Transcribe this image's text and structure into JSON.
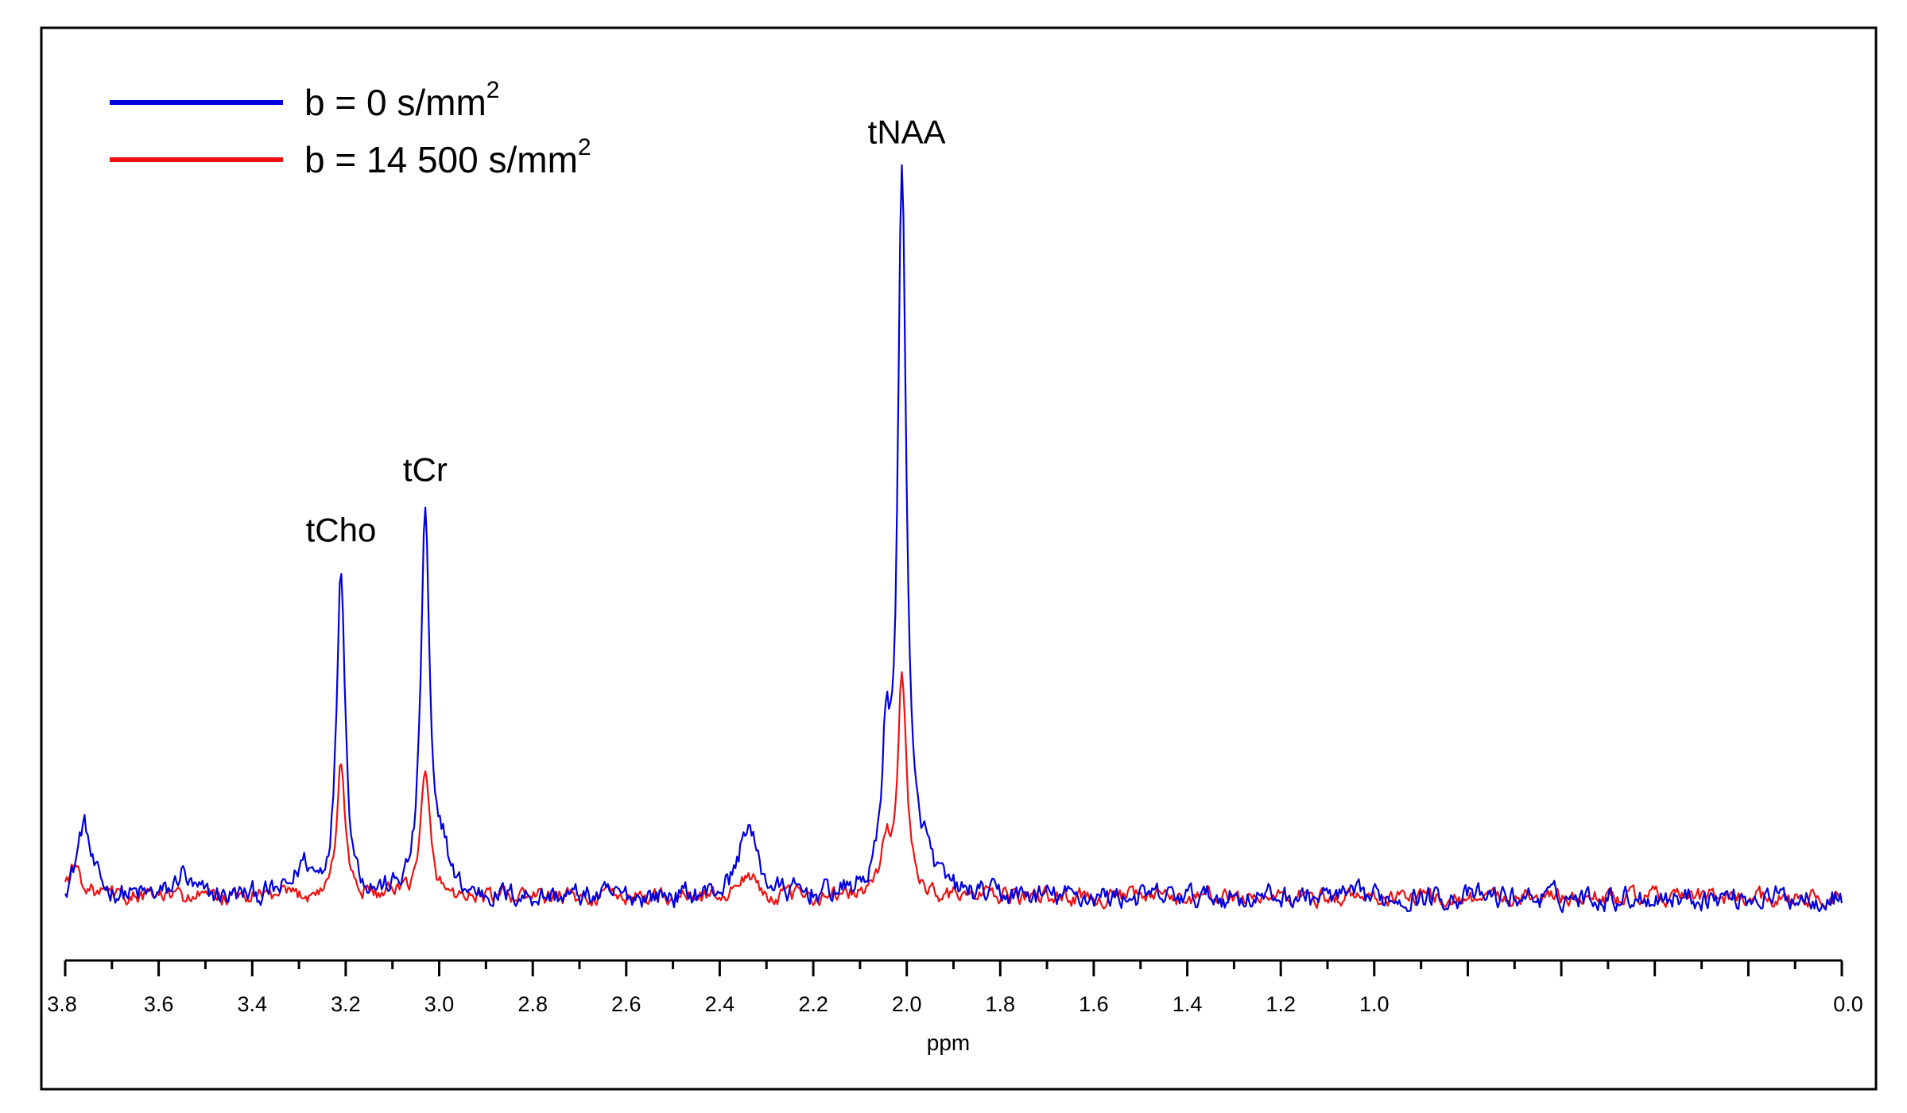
{
  "chart_data": {
    "type": "line",
    "title": "",
    "xlabel": "ppm",
    "ylabel": "",
    "x_reversed": true,
    "xlim": [
      3.8,
      0.0
    ],
    "xticks": [
      "3.8",
      "3.6",
      "3.4",
      "3.2",
      "3.0",
      "2.8",
      "2.6",
      "2.4",
      "2.2",
      "2.0",
      "1.8",
      "1.6",
      "1.4",
      "1.2",
      "1.0",
      "0.0"
    ],
    "xtick_values": [
      3.8,
      3.6,
      3.4,
      3.2,
      3.0,
      2.8,
      2.6,
      2.4,
      2.2,
      2.0,
      1.8,
      1.6,
      1.4,
      1.2,
      1.0,
      0.0
    ],
    "grid": false,
    "legend_position": "top-left",
    "series": [
      {
        "name": "b = 0 s/mm",
        "name_sup": "2",
        "color": "#0000dd",
        "baseline": 0.03,
        "noise": 0.022,
        "peaks": [
          {
            "ppm": 3.76,
            "height": 0.12,
            "width": 0.018
          },
          {
            "ppm": 3.55,
            "height": 0.04,
            "width": 0.015
          },
          {
            "ppm": 3.29,
            "height": 0.05,
            "width": 0.02
          },
          {
            "ppm": 3.21,
            "height": 0.55,
            "width": 0.011
          },
          {
            "ppm": 3.03,
            "height": 0.64,
            "width": 0.011
          },
          {
            "ppm": 2.99,
            "height": 0.07,
            "width": 0.012
          },
          {
            "ppm": 2.34,
            "height": 0.12,
            "width": 0.022
          },
          {
            "ppm": 2.045,
            "height": 0.22,
            "width": 0.01
          },
          {
            "ppm": 2.01,
            "height": 1.2,
            "width": 0.011
          },
          {
            "ppm": 1.96,
            "height": 0.05,
            "width": 0.02
          }
        ]
      },
      {
        "name": "b = 14 500 s/mm",
        "name_sup": "2",
        "color": "#ee1111",
        "baseline": 0.03,
        "noise": 0.016,
        "peaks": [
          {
            "ppm": 3.78,
            "height": 0.05,
            "width": 0.02
          },
          {
            "ppm": 3.21,
            "height": 0.22,
            "width": 0.011
          },
          {
            "ppm": 3.03,
            "height": 0.2,
            "width": 0.012
          },
          {
            "ppm": 2.34,
            "height": 0.04,
            "width": 0.018
          },
          {
            "ppm": 2.045,
            "height": 0.08,
            "width": 0.012
          },
          {
            "ppm": 2.01,
            "height": 0.37,
            "width": 0.011
          }
        ]
      }
    ],
    "ylim": [
      -0.05,
      1.32
    ],
    "annotations": [
      {
        "text": "tCho",
        "ppm": 3.21,
        "y": 0.62
      },
      {
        "text": "tCr",
        "ppm": 3.03,
        "y": 0.72
      },
      {
        "text": "tNAA",
        "ppm": 2.0,
        "y": 1.28
      }
    ]
  }
}
